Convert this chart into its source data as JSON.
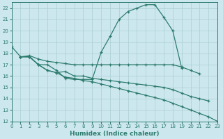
{
  "xlabel": "Humidex (Indice chaleur)",
  "xlim": [
    0,
    23
  ],
  "ylim": [
    12,
    22.5
  ],
  "yticks": [
    12,
    13,
    14,
    15,
    16,
    17,
    18,
    19,
    20,
    21,
    22
  ],
  "xticks": [
    0,
    1,
    2,
    3,
    4,
    5,
    6,
    7,
    8,
    9,
    10,
    11,
    12,
    13,
    14,
    15,
    16,
    17,
    18,
    19,
    20,
    21,
    22,
    23
  ],
  "bg_color": "#cce8ee",
  "line_color": "#2d7b6e",
  "grid_color": "#aacdd4",
  "line1_x": [
    0,
    1,
    2,
    3,
    4,
    5,
    6,
    7,
    8,
    9,
    10,
    11,
    12,
    13,
    14,
    15,
    16,
    17,
    18,
    19
  ],
  "line1_y": [
    18.6,
    17.7,
    17.7,
    17.0,
    17.0,
    16.5,
    15.8,
    15.7,
    15.7,
    15.7,
    18.1,
    19.5,
    21.0,
    21.7,
    22.0,
    22.3,
    22.3,
    21.2,
    20.0,
    16.7
  ],
  "line2_x": [
    1,
    2,
    3,
    4,
    5,
    6,
    7,
    8,
    9,
    10,
    11,
    12,
    13,
    14,
    15,
    16,
    17,
    18,
    19,
    20,
    21
  ],
  "line2_y": [
    17.7,
    17.8,
    17.5,
    17.3,
    17.2,
    17.1,
    17.0,
    17.0,
    17.0,
    17.0,
    17.0,
    17.0,
    17.0,
    17.0,
    17.0,
    17.0,
    17.0,
    17.0,
    16.8,
    16.5,
    16.2
  ],
  "line3_x": [
    1,
    2,
    3,
    4,
    5,
    6,
    7,
    8,
    9,
    10,
    11,
    12,
    13,
    14,
    15,
    16,
    17,
    18,
    19,
    20,
    21,
    22
  ],
  "line3_y": [
    17.7,
    17.7,
    17.0,
    16.5,
    16.3,
    16.4,
    16.0,
    16.0,
    15.8,
    15.7,
    15.6,
    15.5,
    15.4,
    15.3,
    15.2,
    15.1,
    15.0,
    14.8,
    14.5,
    14.2,
    14.0,
    13.8
  ],
  "line4_x": [
    1,
    2,
    3,
    4,
    5,
    6,
    7,
    8,
    9,
    10,
    11,
    12,
    13,
    14,
    15,
    16,
    17,
    18,
    19,
    20,
    21,
    22,
    23
  ],
  "line4_y": [
    17.7,
    17.7,
    17.0,
    16.5,
    16.3,
    15.9,
    15.8,
    15.6,
    15.5,
    15.3,
    15.1,
    14.9,
    14.7,
    14.5,
    14.3,
    14.1,
    13.9,
    13.6,
    13.3,
    13.0,
    12.7,
    12.4,
    12.0
  ]
}
